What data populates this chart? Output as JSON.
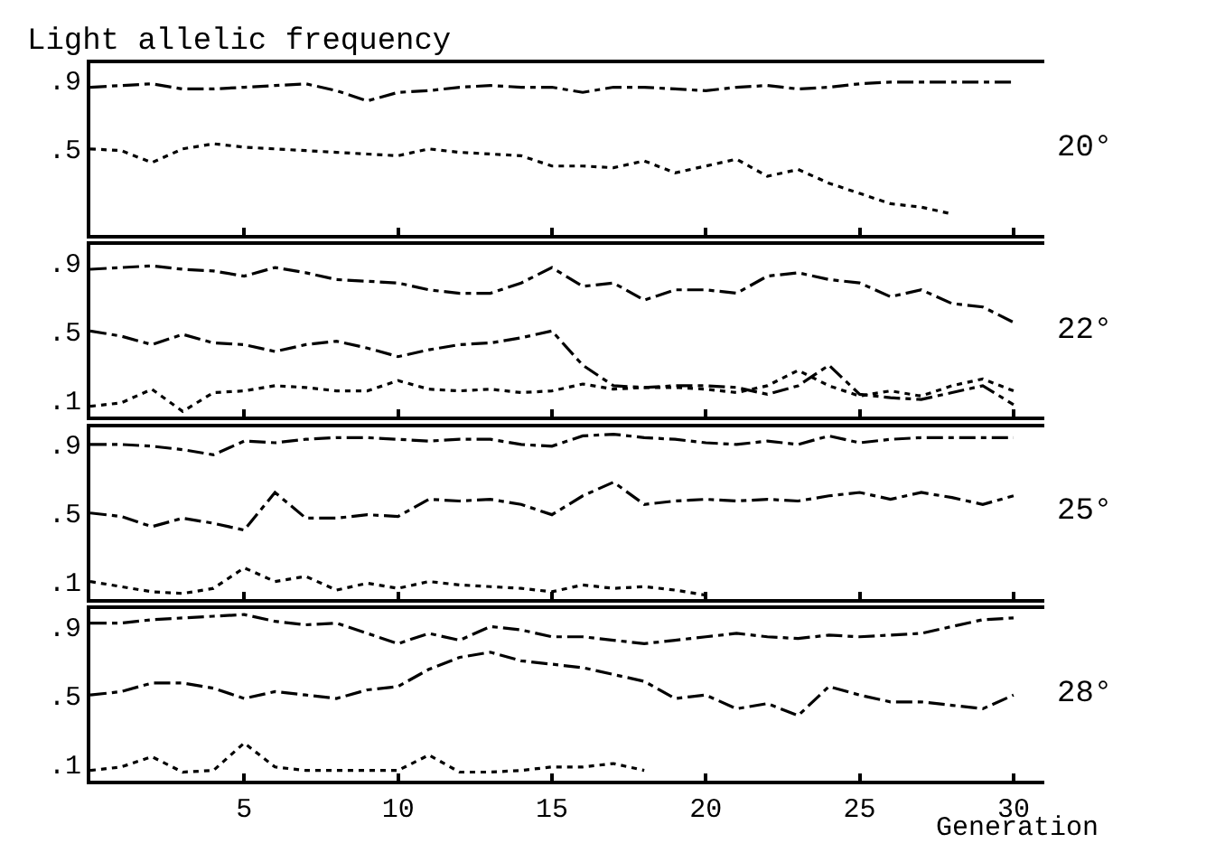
{
  "chart_data": [
    {
      "type": "line",
      "title": "Light allelic frequency",
      "x": [
        0,
        1,
        2,
        3,
        4,
        5,
        6,
        7,
        8,
        9,
        10,
        11,
        12,
        13,
        14,
        15,
        16,
        17,
        18,
        19,
        20,
        21,
        22,
        23,
        24,
        25,
        26,
        27,
        28,
        29,
        30
      ],
      "xlim": [
        0,
        31
      ],
      "xticks": [
        5,
        10,
        15,
        20,
        25,
        30
      ],
      "ylim": [
        0,
        1
      ],
      "yticks": [
        {
          "value": 0.5,
          "label": ".5"
        },
        {
          "value": 0.9,
          "label": ".9"
        }
      ],
      "tick_labels": "y",
      "annotations": [
        "20°"
      ],
      "marker": "none",
      "series": [
        {
          "color": "#000000",
          "line_style": "dashed",
          "values": [
            0.86,
            0.87,
            0.88,
            0.85,
            0.85,
            0.86,
            0.87,
            0.88,
            0.84,
            0.78,
            0.83,
            0.84,
            0.86,
            0.87,
            0.86,
            0.86,
            0.83,
            0.86,
            0.86,
            0.85,
            0.84,
            0.86,
            0.87,
            0.85,
            0.86,
            0.88,
            0.89,
            0.89,
            0.89,
            0.89,
            0.89
          ]
        },
        {
          "color": "#000000",
          "line_style": "dotted",
          "values": [
            0.5,
            0.49,
            0.42,
            0.5,
            0.53,
            0.51,
            0.5,
            0.49,
            0.48,
            0.47,
            0.46,
            0.5,
            0.48,
            0.47,
            0.46,
            0.4,
            0.4,
            0.39,
            0.43,
            0.36,
            0.4,
            0.44,
            0.34,
            0.38,
            0.3,
            0.24,
            0.18,
            0.16,
            0.12,
            null,
            null
          ]
        }
      ]
    },
    {
      "type": "line",
      "x": [
        0,
        1,
        2,
        3,
        4,
        5,
        6,
        7,
        8,
        9,
        10,
        11,
        12,
        13,
        14,
        15,
        16,
        17,
        18,
        19,
        20,
        21,
        22,
        23,
        24,
        25,
        26,
        27,
        28,
        29,
        30
      ],
      "xlim": [
        0,
        31
      ],
      "xticks": [
        5,
        10,
        15,
        20,
        25,
        30
      ],
      "ylim": [
        0,
        1
      ],
      "yticks": [
        {
          "value": 0.1,
          "label": ".1"
        },
        {
          "value": 0.5,
          "label": ".5"
        },
        {
          "value": 0.9,
          "label": ".9"
        }
      ],
      "tick_labels": "y",
      "annotations": [
        "22°"
      ],
      "marker": "none",
      "series": [
        {
          "color": "#000000",
          "line_style": "dashed",
          "values": [
            0.86,
            0.87,
            0.88,
            0.86,
            0.85,
            0.82,
            0.87,
            0.84,
            0.8,
            0.79,
            0.78,
            0.74,
            0.72,
            0.72,
            0.78,
            0.87,
            0.76,
            0.78,
            0.68,
            0.74,
            0.74,
            0.72,
            0.82,
            0.84,
            0.8,
            0.78,
            0.7,
            0.74,
            0.66,
            0.64,
            0.55
          ]
        },
        {
          "color": "#000000",
          "line_style": "dashed",
          "values": [
            0.5,
            0.47,
            0.42,
            0.48,
            0.43,
            0.42,
            0.38,
            0.42,
            0.44,
            0.4,
            0.35,
            0.39,
            0.42,
            0.43,
            0.46,
            0.5,
            0.3,
            0.18,
            0.17,
            0.18,
            0.18,
            0.17,
            0.13,
            0.18,
            0.3,
            0.13,
            0.11,
            0.1,
            0.14,
            0.18,
            0.07
          ]
        },
        {
          "color": "#000000",
          "line_style": "dotted",
          "values": [
            0.06,
            0.08,
            0.16,
            0.03,
            0.14,
            0.15,
            0.18,
            0.17,
            0.15,
            0.15,
            0.21,
            0.16,
            0.15,
            0.16,
            0.14,
            0.15,
            0.19,
            0.16,
            0.17,
            0.17,
            0.16,
            0.14,
            0.18,
            0.27,
            0.18,
            0.12,
            0.15,
            0.12,
            0.18,
            0.22,
            0.15
          ]
        }
      ]
    },
    {
      "type": "line",
      "x": [
        0,
        1,
        2,
        3,
        4,
        5,
        6,
        7,
        8,
        9,
        10,
        11,
        12,
        13,
        14,
        15,
        16,
        17,
        18,
        19,
        20,
        21,
        22,
        23,
        24,
        25,
        26,
        27,
        28,
        29,
        30
      ],
      "xlim": [
        0,
        31
      ],
      "xticks": [
        5,
        10,
        15,
        20,
        25,
        30
      ],
      "ylim": [
        0,
        1
      ],
      "yticks": [
        {
          "value": 0.1,
          "label": ".1"
        },
        {
          "value": 0.5,
          "label": ".5"
        },
        {
          "value": 0.9,
          "label": ".9"
        }
      ],
      "tick_labels": "y",
      "annotations": [
        "25°"
      ],
      "marker": "none",
      "series": [
        {
          "color": "#000000",
          "line_style": "dashed",
          "values": [
            0.9,
            0.9,
            0.89,
            0.87,
            0.84,
            0.92,
            0.91,
            0.93,
            0.94,
            0.94,
            0.93,
            0.92,
            0.93,
            0.93,
            0.9,
            0.89,
            0.95,
            0.96,
            0.94,
            0.93,
            0.91,
            0.9,
            0.92,
            0.9,
            0.95,
            0.91,
            0.93,
            0.94,
            0.94,
            0.94,
            0.94
          ]
        },
        {
          "color": "#000000",
          "line_style": "dashed",
          "values": [
            0.5,
            0.48,
            0.42,
            0.47,
            0.44,
            0.4,
            0.62,
            0.47,
            0.47,
            0.49,
            0.48,
            0.58,
            0.57,
            0.58,
            0.55,
            0.49,
            0.6,
            0.68,
            0.55,
            0.57,
            0.58,
            0.57,
            0.58,
            0.57,
            0.6,
            0.62,
            0.58,
            0.62,
            0.59,
            0.55,
            0.6
          ]
        },
        {
          "color": "#000000",
          "line_style": "dotted",
          "values": [
            0.1,
            0.07,
            0.04,
            0.03,
            0.06,
            0.18,
            0.1,
            0.13,
            0.05,
            0.09,
            0.06,
            0.1,
            0.08,
            0.07,
            0.06,
            0.04,
            0.08,
            0.06,
            0.07,
            0.05,
            0.02,
            null,
            null,
            null,
            null,
            null,
            null,
            null,
            null,
            null,
            null
          ]
        }
      ]
    },
    {
      "type": "line",
      "xlabel": "Generation",
      "x": [
        0,
        1,
        2,
        3,
        4,
        5,
        6,
        7,
        8,
        9,
        10,
        11,
        12,
        13,
        14,
        15,
        16,
        17,
        18,
        19,
        20,
        21,
        22,
        23,
        24,
        25,
        26,
        27,
        28,
        29,
        30
      ],
      "xlim": [
        0,
        31
      ],
      "xticks": [
        5,
        10,
        15,
        20,
        25,
        30
      ],
      "ylim": [
        0,
        1
      ],
      "yticks": [
        {
          "value": 0.1,
          "label": ".1"
        },
        {
          "value": 0.5,
          "label": ".5"
        },
        {
          "value": 0.9,
          "label": ".9"
        }
      ],
      "annotations": [
        "28°"
      ],
      "marker": "none",
      "series": [
        {
          "color": "#000000",
          "line_style": "dashed",
          "values": [
            0.92,
            0.92,
            0.94,
            0.95,
            0.96,
            0.97,
            0.93,
            0.91,
            0.92,
            0.86,
            0.8,
            0.86,
            0.82,
            0.9,
            0.88,
            0.84,
            0.84,
            0.82,
            0.8,
            0.82,
            0.84,
            0.86,
            0.84,
            0.83,
            0.85,
            0.84,
            0.85,
            0.86,
            0.9,
            0.94,
            0.95
          ]
        },
        {
          "color": "#000000",
          "line_style": "dashed",
          "values": [
            0.5,
            0.52,
            0.57,
            0.57,
            0.54,
            0.48,
            0.52,
            0.5,
            0.48,
            0.53,
            0.55,
            0.65,
            0.72,
            0.75,
            0.7,
            0.68,
            0.66,
            0.62,
            0.58,
            0.48,
            0.5,
            0.42,
            0.45,
            0.38,
            0.55,
            0.5,
            0.46,
            0.46,
            0.44,
            0.42,
            0.5
          ]
        },
        {
          "color": "#000000",
          "line_style": "dotted",
          "values": [
            0.06,
            0.08,
            0.14,
            0.05,
            0.06,
            0.22,
            0.08,
            0.06,
            0.06,
            0.06,
            0.06,
            0.15,
            0.05,
            0.05,
            0.06,
            0.08,
            0.08,
            0.1,
            0.06,
            null,
            null,
            null,
            null,
            null,
            null,
            null,
            null,
            null,
            null,
            null,
            null
          ]
        }
      ]
    }
  ]
}
